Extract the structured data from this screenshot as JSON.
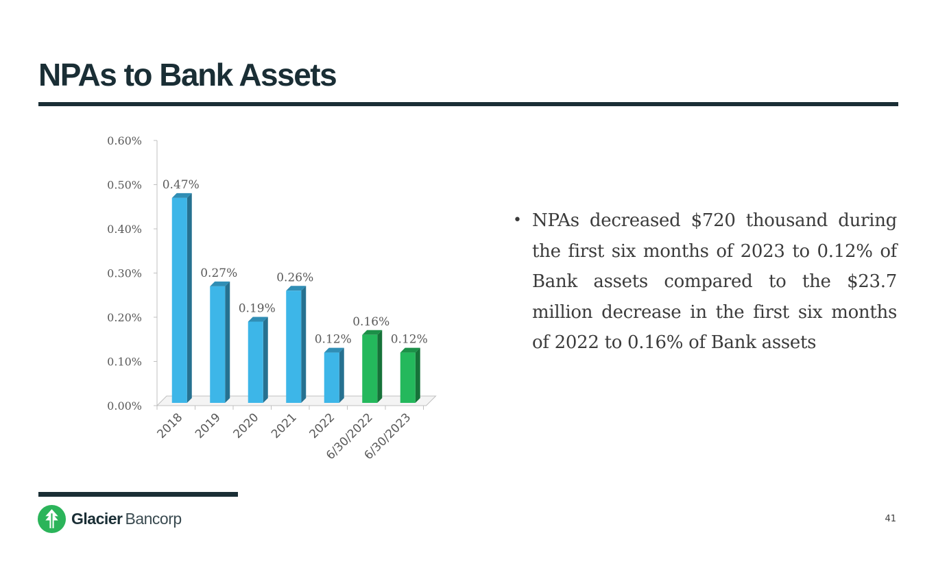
{
  "slide": {
    "title": "NPAs to Bank Assets",
    "page_number": "41"
  },
  "bullet": {
    "text": "NPAs decreased $720 thousand during the first six months of 2023 to 0.12% of Bank assets compared to the $23.7 million decrease in the first six months of 2022 to 0.16% of Bank assets"
  },
  "logo": {
    "strong": "Glacier",
    "light": "Bancorp",
    "icon": "glacier-tree-icon"
  },
  "colors": {
    "title": "#1a2e35",
    "blue_bar": "#3db6e8",
    "green_bar": "#24b85c",
    "logo_green": "#2bb45a"
  },
  "chart_data": {
    "type": "bar",
    "title": "",
    "xlabel": "",
    "ylabel": "",
    "categories": [
      "2018",
      "2019",
      "2020",
      "2021",
      "2022",
      "6/30/2022",
      "6/30/2023"
    ],
    "values": [
      0.47,
      0.27,
      0.19,
      0.26,
      0.12,
      0.16,
      0.12
    ],
    "data_labels": [
      "0.47%",
      "0.27%",
      "0.19%",
      "0.26%",
      "0.12%",
      "0.16%",
      "0.12%"
    ],
    "bar_colors": [
      "#3db6e8",
      "#3db6e8",
      "#3db6e8",
      "#3db6e8",
      "#3db6e8",
      "#24b85c",
      "#24b85c"
    ],
    "ylim": [
      0,
      0.6
    ],
    "yticks": [
      0,
      0.1,
      0.2,
      0.3,
      0.4,
      0.5,
      0.6
    ],
    "ytick_labels": [
      "0.00%",
      "0.10%",
      "0.20%",
      "0.30%",
      "0.40%",
      "0.50%",
      "0.60%"
    ],
    "grid": false,
    "legend": "none",
    "style": "3d-column"
  }
}
